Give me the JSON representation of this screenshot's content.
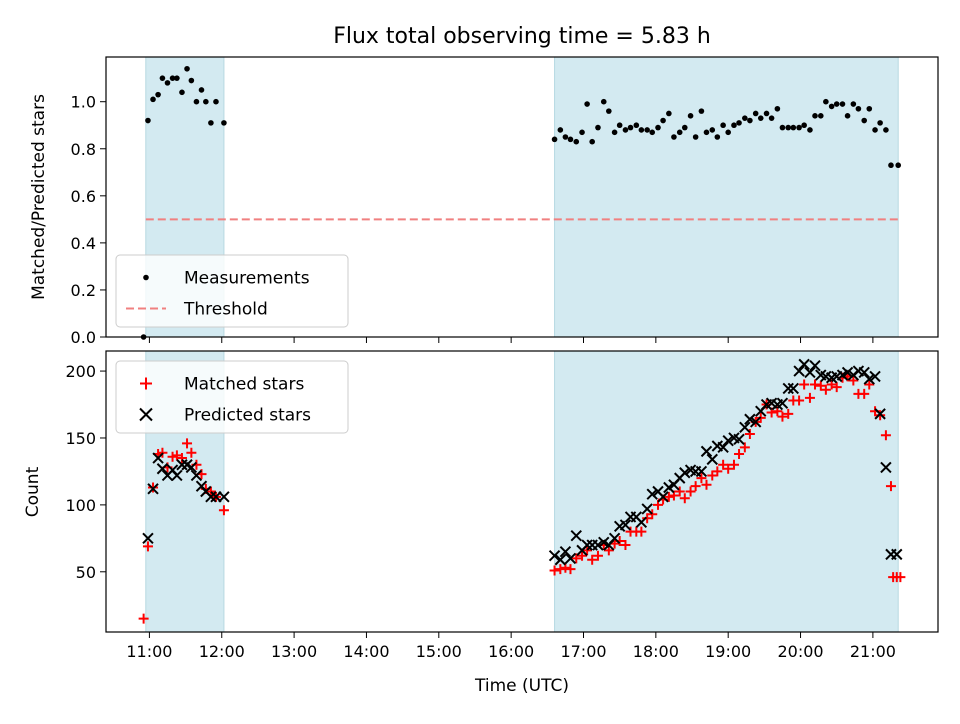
{
  "chart_data": [
    {
      "type": "scatter",
      "title": "Flux total observing time = 5.83 h",
      "ylabel": "Matched/Predicted stars",
      "xlabel": "",
      "xlim": [
        10.4,
        21.9
      ],
      "ylim": [
        0.0,
        1.19
      ],
      "yticks": [
        0.0,
        0.2,
        0.4,
        0.6,
        0.8,
        1.0
      ],
      "ytick_labels": [
        "0.0",
        "0.2",
        "0.4",
        "0.6",
        "0.8",
        "1.0"
      ],
      "xticks": [
        11,
        12,
        13,
        14,
        15,
        16,
        17,
        18,
        19,
        20,
        21
      ],
      "show_xtick_labels": false,
      "grid": false,
      "legend_position": "lower-left",
      "shaded_spans": [
        [
          10.95,
          12.03
        ],
        [
          16.6,
          21.35
        ]
      ],
      "shade_color": "#d3eaf1",
      "threshold": {
        "name": "Threshold",
        "value": 0.5,
        "x_range": [
          10.95,
          21.35
        ],
        "color": "#f08080"
      },
      "series": [
        {
          "name": "Measurements",
          "color": "#000000",
          "marker": "dot",
          "x": [
            10.92,
            10.98,
            11.05,
            11.12,
            11.18,
            11.25,
            11.32,
            11.38,
            11.45,
            11.52,
            11.58,
            11.65,
            11.72,
            11.78,
            11.85,
            11.92,
            12.03,
            16.6,
            16.68,
            16.75,
            16.82,
            16.9,
            16.98,
            17.05,
            17.12,
            17.2,
            17.28,
            17.35,
            17.43,
            17.5,
            17.58,
            17.65,
            17.73,
            17.8,
            17.88,
            17.95,
            18.03,
            18.1,
            18.18,
            18.25,
            18.33,
            18.4,
            18.48,
            18.55,
            18.63,
            18.7,
            18.78,
            18.85,
            18.93,
            19.0,
            19.08,
            19.15,
            19.23,
            19.3,
            19.38,
            19.45,
            19.53,
            19.6,
            19.68,
            19.75,
            19.83,
            19.9,
            19.98,
            20.05,
            20.13,
            20.2,
            20.28,
            20.35,
            20.43,
            20.5,
            20.58,
            20.65,
            20.73,
            20.8,
            20.88,
            20.95,
            21.03,
            21.1,
            21.18,
            21.25,
            21.35
          ],
          "y": [
            0.0,
            0.92,
            1.01,
            1.03,
            1.1,
            1.08,
            1.1,
            1.1,
            1.04,
            1.14,
            1.09,
            1.0,
            1.05,
            1.0,
            0.91,
            1.0,
            0.91,
            0.84,
            0.88,
            0.85,
            0.84,
            0.83,
            0.87,
            0.99,
            0.83,
            0.89,
            1.0,
            0.96,
            0.87,
            0.9,
            0.88,
            0.89,
            0.9,
            0.88,
            0.88,
            0.87,
            0.89,
            0.92,
            0.95,
            0.85,
            0.87,
            0.89,
            0.94,
            0.85,
            0.96,
            0.87,
            0.88,
            0.85,
            0.9,
            0.87,
            0.9,
            0.91,
            0.93,
            0.92,
            0.95,
            0.93,
            0.95,
            0.93,
            0.97,
            0.89,
            0.89,
            0.89,
            0.89,
            0.9,
            0.88,
            0.94,
            0.94,
            1.0,
            0.98,
            0.99,
            0.99,
            0.94,
            0.99,
            0.97,
            0.92,
            0.97,
            0.88,
            0.91,
            0.88,
            0.73,
            0.73
          ]
        }
      ]
    },
    {
      "type": "scatter",
      "title": "",
      "ylabel": "Count",
      "xlabel": "Time (UTC)",
      "xlim": [
        10.4,
        21.9
      ],
      "ylim": [
        5,
        215
      ],
      "yticks": [
        50,
        100,
        150,
        200
      ],
      "ytick_labels": [
        "50",
        "100",
        "150",
        "200"
      ],
      "xticks": [
        11,
        12,
        13,
        14,
        15,
        16,
        17,
        18,
        19,
        20,
        21
      ],
      "xtick_labels": [
        "11:00",
        "12:00",
        "13:00",
        "14:00",
        "15:00",
        "16:00",
        "17:00",
        "18:00",
        "19:00",
        "20:00",
        "21:00"
      ],
      "grid": false,
      "legend_position": "upper-left",
      "shaded_spans": [
        [
          10.95,
          12.03
        ],
        [
          16.6,
          21.35
        ]
      ],
      "shade_color": "#d3eaf1",
      "series": [
        {
          "name": "Matched stars",
          "color": "#ff0000",
          "marker": "plus",
          "x": [
            10.92,
            10.98,
            11.05,
            11.12,
            11.18,
            11.25,
            11.32,
            11.38,
            11.45,
            11.52,
            11.58,
            11.65,
            11.72,
            11.78,
            11.85,
            11.92,
            12.03,
            16.6,
            16.68,
            16.75,
            16.82,
            16.9,
            16.98,
            17.05,
            17.12,
            17.2,
            17.28,
            17.35,
            17.43,
            17.5,
            17.58,
            17.65,
            17.73,
            17.8,
            17.88,
            17.95,
            18.03,
            18.1,
            18.18,
            18.25,
            18.33,
            18.4,
            18.48,
            18.55,
            18.63,
            18.7,
            18.78,
            18.85,
            18.93,
            19.0,
            19.08,
            19.15,
            19.23,
            19.3,
            19.38,
            19.45,
            19.53,
            19.6,
            19.68,
            19.75,
            19.83,
            19.9,
            19.98,
            20.05,
            20.13,
            20.2,
            20.28,
            20.35,
            20.43,
            20.5,
            20.58,
            20.65,
            20.73,
            20.8,
            20.88,
            20.95,
            21.03,
            21.1,
            21.18,
            21.25,
            21.28,
            21.33,
            21.38
          ],
          "y": [
            15,
            69,
            113,
            138,
            139,
            128,
            136,
            137,
            135,
            146,
            139,
            130,
            123,
            112,
            110,
            106,
            96,
            51,
            52,
            53,
            52,
            60,
            62,
            66,
            59,
            62,
            70,
            66,
            71,
            73,
            70,
            80,
            80,
            80,
            90,
            93,
            100,
            104,
            106,
            107,
            110,
            105,
            110,
            114,
            120,
            115,
            122,
            125,
            130,
            127,
            130,
            138,
            143,
            153,
            162,
            165,
            175,
            169,
            170,
            166,
            168,
            178,
            178,
            190,
            180,
            190,
            189,
            186,
            190,
            188,
            195,
            196,
            193,
            183,
            183,
            190,
            170,
            167,
            152,
            114,
            46,
            46,
            46
          ]
        },
        {
          "name": "Predicted stars",
          "color": "#000000",
          "marker": "x",
          "x": [
            10.98,
            11.05,
            11.12,
            11.18,
            11.25,
            11.32,
            11.38,
            11.45,
            11.52,
            11.58,
            11.65,
            11.72,
            11.78,
            11.85,
            11.92,
            12.03,
            16.6,
            16.68,
            16.75,
            16.82,
            16.9,
            16.98,
            17.05,
            17.12,
            17.2,
            17.28,
            17.35,
            17.43,
            17.5,
            17.58,
            17.65,
            17.73,
            17.8,
            17.88,
            17.95,
            18.03,
            18.1,
            18.18,
            18.25,
            18.33,
            18.4,
            18.48,
            18.55,
            18.63,
            18.7,
            18.78,
            18.85,
            18.93,
            19.0,
            19.08,
            19.15,
            19.23,
            19.3,
            19.38,
            19.45,
            19.53,
            19.6,
            19.68,
            19.75,
            19.83,
            19.9,
            19.98,
            20.05,
            20.13,
            20.2,
            20.28,
            20.35,
            20.43,
            20.5,
            20.58,
            20.65,
            20.73,
            20.8,
            20.88,
            20.95,
            21.03,
            21.1,
            21.18,
            21.25,
            21.33
          ],
          "y": [
            75,
            112,
            135,
            127,
            122,
            126,
            122,
            130,
            130,
            128,
            122,
            114,
            110,
            106,
            106,
            106,
            62,
            59,
            65,
            60,
            77,
            66,
            70,
            70,
            70,
            72,
            70,
            75,
            84,
            85,
            91,
            91,
            87,
            97,
            108,
            110,
            106,
            113,
            115,
            120,
            124,
            126,
            125,
            125,
            140,
            134,
            144,
            143,
            148,
            150,
            149,
            158,
            164,
            162,
            170,
            175,
            176,
            175,
            176,
            187,
            187,
            200,
            205,
            199,
            204,
            197,
            196,
            195,
            196,
            197,
            199,
            197,
            200,
            199,
            194,
            196,
            168,
            128,
            63,
            63
          ]
        }
      ]
    }
  ]
}
